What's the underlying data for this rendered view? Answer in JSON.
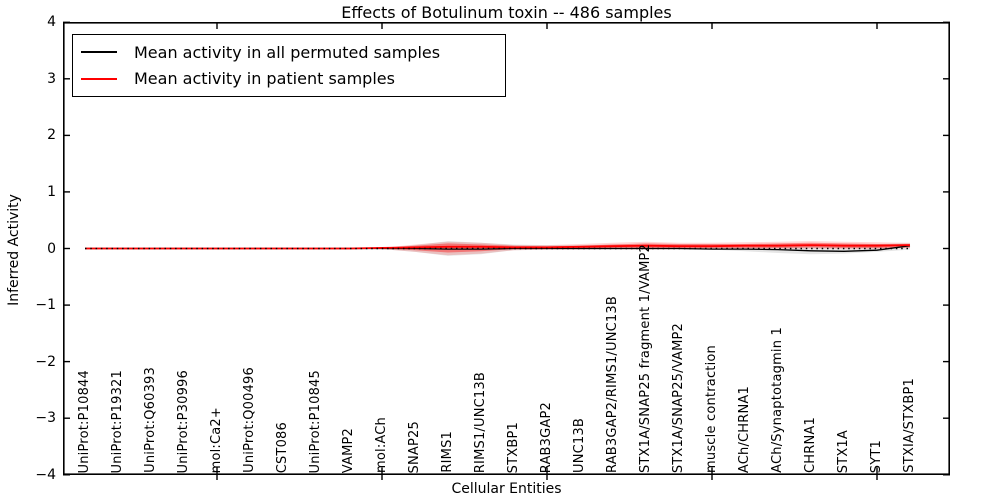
{
  "chart_data": {
    "type": "line",
    "title": "Effects of Botulinum toxin -- 486 samples",
    "xlabel": "Cellular Entities",
    "ylabel": "Inferred Activity",
    "ylim": [
      -4,
      4
    ],
    "grid": false,
    "legend_position": "upper left",
    "zero_line": true,
    "y_ticks": [
      {
        "label": "4",
        "value": 4
      },
      {
        "label": "3",
        "value": 3
      },
      {
        "label": "2",
        "value": 2
      },
      {
        "label": "1",
        "value": 1
      },
      {
        "label": "0",
        "value": 0
      },
      {
        "label": "−1",
        "value": -1
      },
      {
        "label": "−2",
        "value": -2
      },
      {
        "label": "−3",
        "value": -3
      },
      {
        "label": "−4",
        "value": -4
      }
    ],
    "x_major_ticks": [
      5,
      10,
      15,
      20,
      25
    ],
    "categories": [
      "UniProt:P10844",
      "UniProt:P19321",
      "UniProt:Q60393",
      "UniProt:P30996",
      "mol:Ca2+",
      "UniProt:Q00496",
      "CST086",
      "UniProt:P10845",
      "VAMP2",
      "mol:ACh",
      "SNAP25",
      "RIMS1",
      "RIMS1/UNC13B",
      "STXBP1",
      "RAB3GAP2",
      "UNC13B",
      "RAB3GAP2/RIMS1/UNC13B",
      "STX1A/SNAP25 fragment 1/VAMP2",
      "STX1A/SNAP25/VAMP2",
      "muscle contraction",
      "ACh/CHRNA1",
      "ACh/Synaptotagmin 1",
      "CHRNA1",
      "STX1A",
      "SYT1",
      "STXIA/STXBP1"
    ],
    "series": [
      {
        "name": "Mean activity in all permuted samples",
        "color": "#000000",
        "values": [
          0,
          0,
          0,
          0,
          0,
          0,
          0,
          0,
          0,
          0,
          0,
          -0.01,
          -0.01,
          0,
          0,
          0,
          0,
          0,
          0,
          -0.01,
          -0.01,
          -0.02,
          -0.04,
          -0.05,
          -0.03,
          0.05
        ]
      },
      {
        "name": "Mean activity in patient samples",
        "color": "#ff0000",
        "values": [
          0,
          0,
          0,
          0,
          0,
          0,
          0,
          0,
          0,
          0.01,
          0.02,
          0.03,
          0.03,
          0.02,
          0.02,
          0.03,
          0.04,
          0.05,
          0.04,
          0.04,
          0.05,
          0.05,
          0.06,
          0.05,
          0.05,
          0.06
        ]
      }
    ],
    "bands": [
      {
        "name": "permuted-std-band",
        "color": "rgba(0,0,0,0.10)",
        "lower": [
          0,
          0,
          0,
          0,
          0,
          0,
          0,
          0,
          0,
          -0.01,
          -0.06,
          -0.13,
          -0.1,
          -0.03,
          -0.02,
          -0.02,
          -0.02,
          -0.02,
          -0.02,
          -0.02,
          -0.05,
          -0.08,
          -0.1,
          -0.09,
          -0.06,
          -0.02
        ],
        "upper": [
          0,
          0,
          0,
          0,
          0,
          0,
          0,
          0,
          0,
          0.01,
          0.06,
          0.13,
          0.1,
          0.07,
          0.06,
          0.06,
          0.07,
          0.07,
          0.07,
          0.07,
          0.07,
          0.08,
          0.08,
          0.08,
          0.08,
          0.09
        ]
      },
      {
        "name": "patient-std-band-outer",
        "color": "rgba(255,0,0,0.16)",
        "lower": [
          0,
          0,
          0,
          0,
          0,
          0,
          0,
          0,
          0,
          -0.01,
          -0.06,
          -0.12,
          -0.09,
          -0.03,
          -0.02,
          -0.02,
          -0.01,
          -0.02,
          -0.01,
          -0.01,
          -0.01,
          -0.01,
          0,
          -0.01,
          -0.01,
          0.01
        ],
        "upper": [
          0,
          0,
          0,
          0,
          0,
          0,
          0,
          0,
          0,
          0.01,
          0.07,
          0.12,
          0.1,
          0.06,
          0.06,
          0.08,
          0.1,
          0.12,
          0.1,
          0.1,
          0.11,
          0.12,
          0.13,
          0.12,
          0.11,
          0.1
        ]
      },
      {
        "name": "patient-std-band-inner",
        "color": "rgba(255,0,0,0.38)",
        "lower": [
          0,
          0,
          0,
          0,
          0,
          0,
          0,
          0,
          0,
          0,
          -0.03,
          -0.07,
          -0.05,
          -0.01,
          0,
          0,
          0,
          0,
          0,
          0.01,
          0.01,
          0.01,
          0.02,
          0.01,
          0.01,
          0.02
        ],
        "upper": [
          0,
          0,
          0,
          0,
          0,
          0,
          0,
          0,
          0,
          0.01,
          0.05,
          0.09,
          0.07,
          0.05,
          0.04,
          0.05,
          0.07,
          0.09,
          0.08,
          0.08,
          0.08,
          0.09,
          0.1,
          0.09,
          0.08,
          0.08
        ]
      }
    ]
  },
  "legend": {
    "items": [
      {
        "label": "Mean activity in all permuted samples",
        "color": "#000000"
      },
      {
        "label": "Mean activity in patient samples",
        "color": "#ff0000"
      }
    ]
  }
}
